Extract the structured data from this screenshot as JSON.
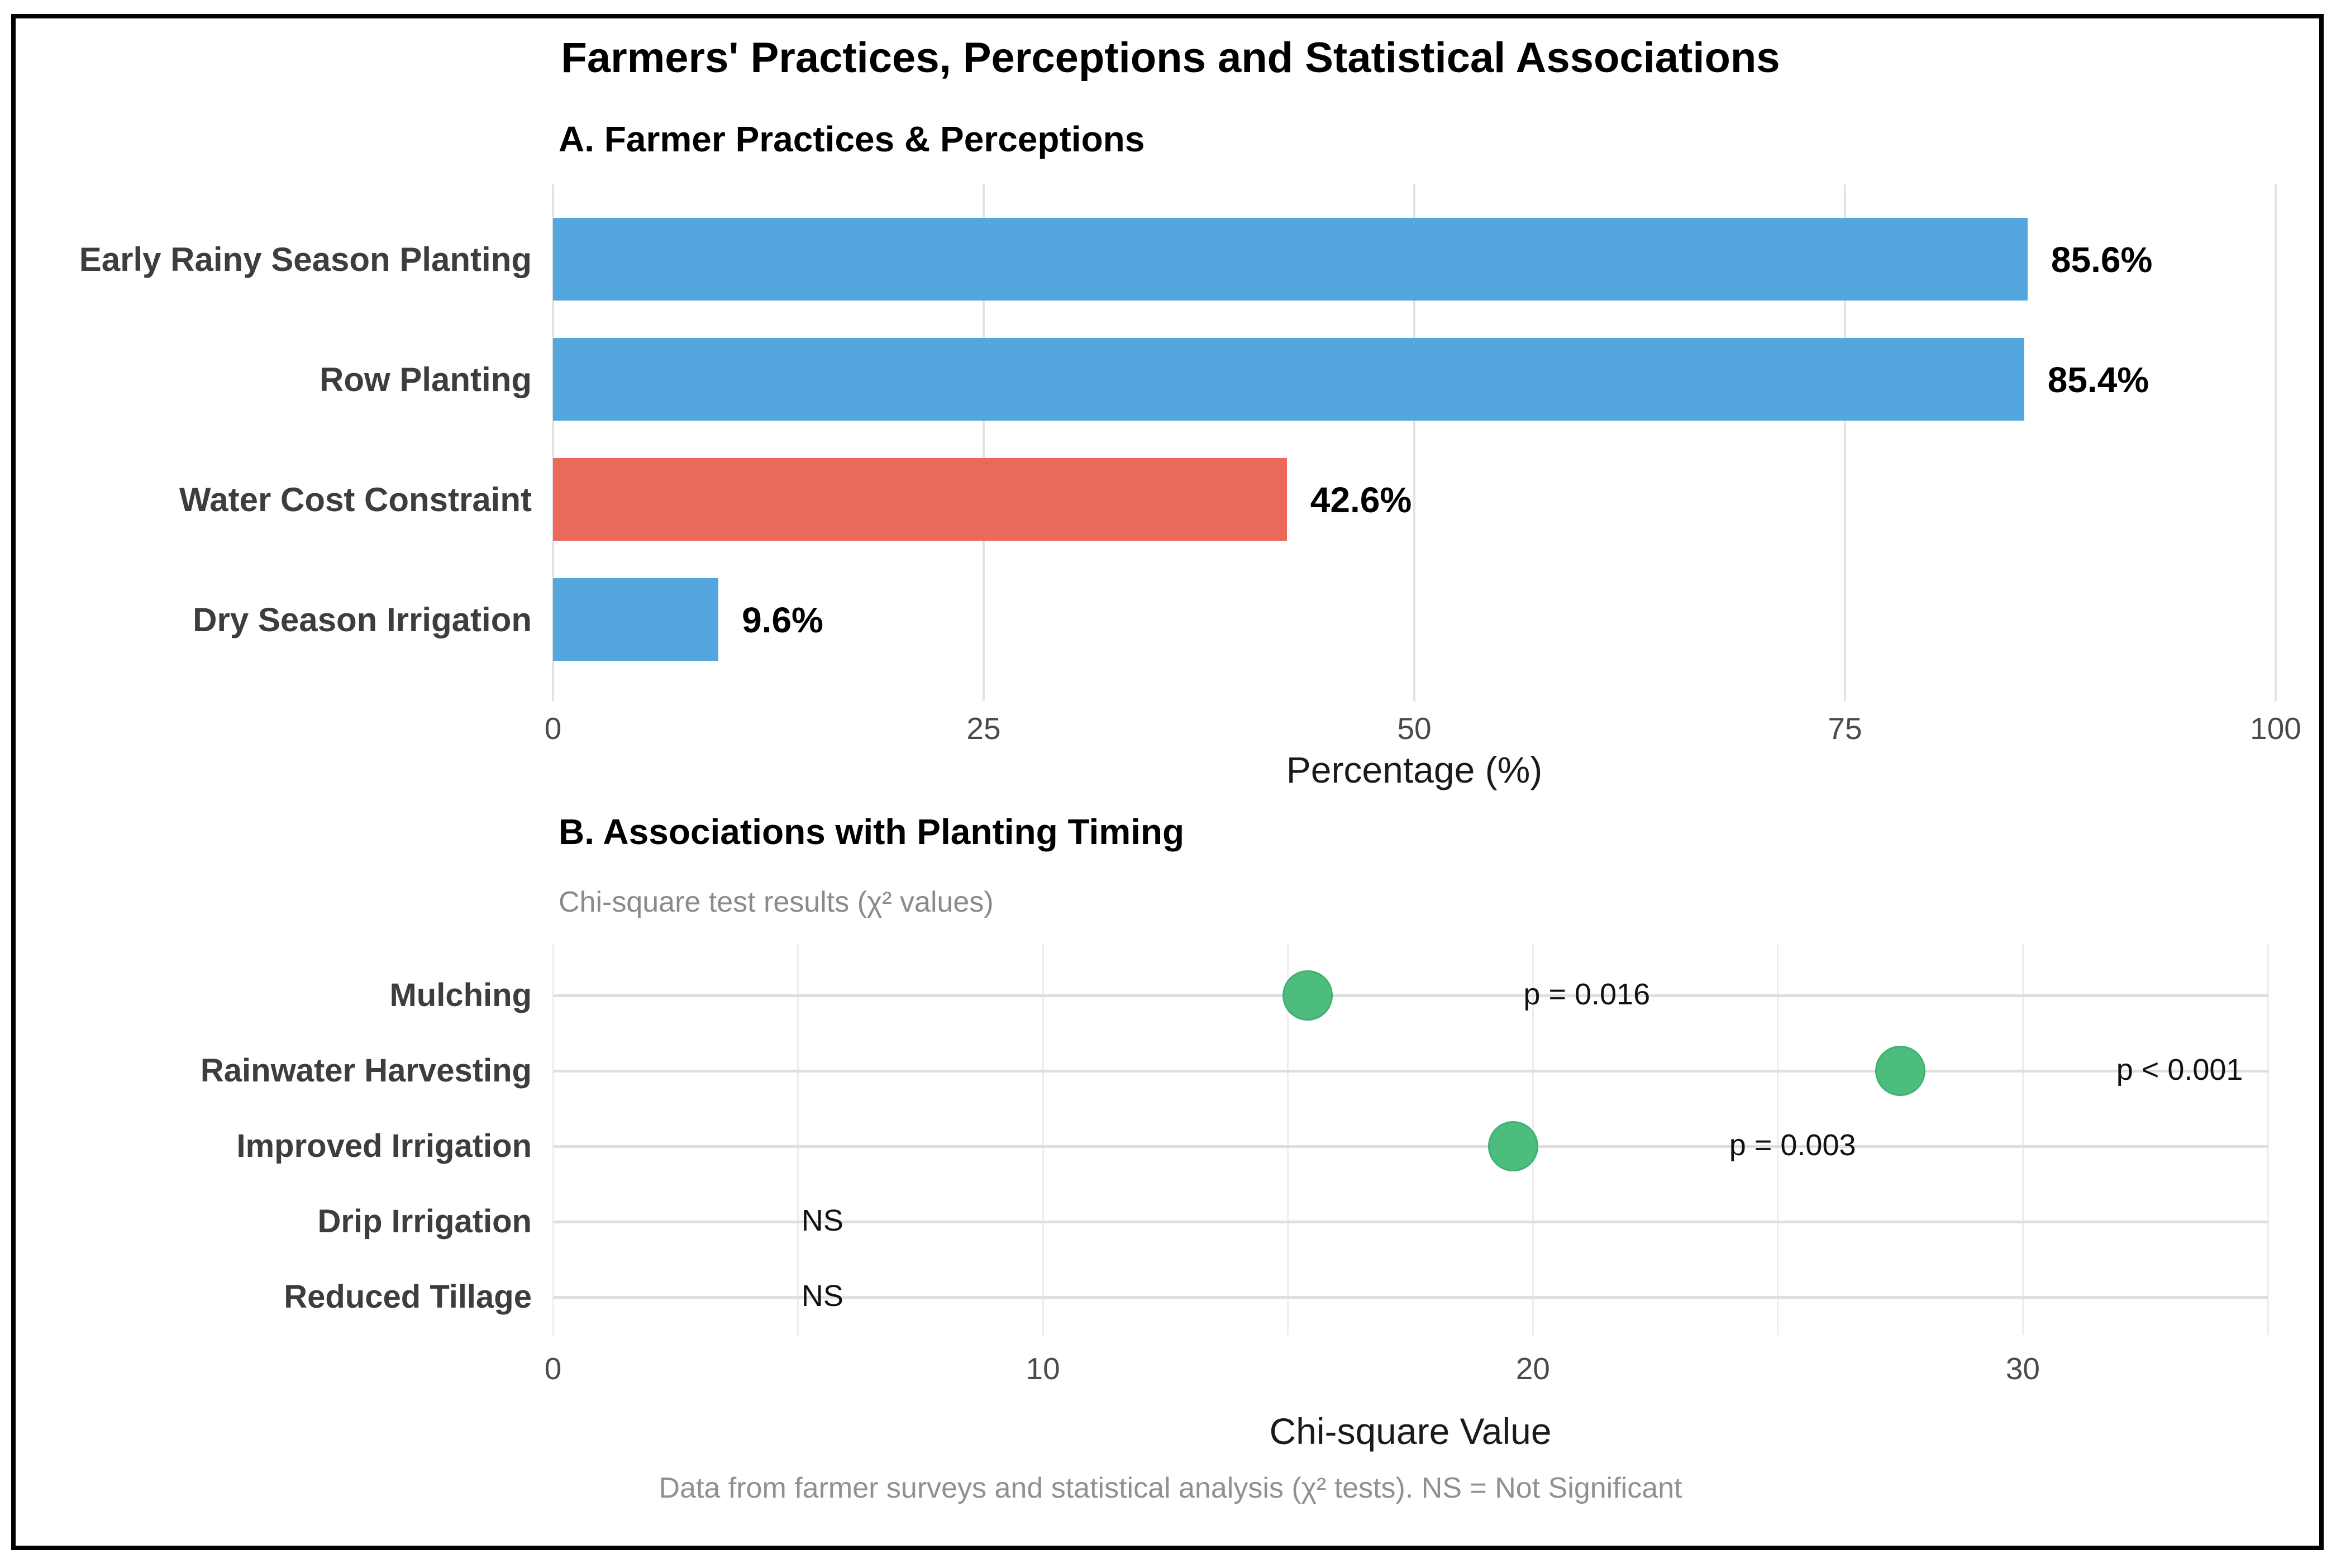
{
  "figure": {
    "title": "Farmers' Practices, Perceptions and Statistical Associations",
    "footer": "Data from farmer surveys and statistical analysis (χ² tests). NS = Not Significant"
  },
  "colors": {
    "bar_blue": "#53a6de",
    "bar_red": "#ea695b",
    "dot_green": "#4dbd7e",
    "dot_green_edge": "#3eb172",
    "grid_a": "#e3e3e3",
    "grid_b_vertical": "#ededed",
    "grid_b_row": "#dfdfdf"
  },
  "chart_data": [
    {
      "type": "bar",
      "orientation": "horizontal",
      "title": "A. Farmer Practices & Perceptions",
      "categories": [
        "Early Rainy Season Planting",
        "Row Planting",
        "Water Cost Constraint",
        "Dry Season Irrigation"
      ],
      "values": [
        85.6,
        85.4,
        42.6,
        9.6
      ],
      "value_labels": [
        "85.6%",
        "85.4%",
        "42.6%",
        "9.6%"
      ],
      "bar_colors": [
        "#53a6de",
        "#53a6de",
        "#ea695b",
        "#53a6de"
      ],
      "xlabel": "Percentage (%)",
      "xlim": [
        0,
        100
      ],
      "xticks": [
        0,
        25,
        50,
        75,
        100
      ],
      "xtick_labels": [
        "0",
        "25",
        "50",
        "75",
        "100"
      ],
      "grid": "vertical-major"
    },
    {
      "type": "scatter",
      "title": "B. Associations with Planting Timing",
      "subtitle": "Chi-square test results (χ² values)",
      "categories": [
        "Mulching",
        "Rainwater Harvesting",
        "Improved Irrigation",
        "Drip Irrigation",
        "Reduced Tillage"
      ],
      "chi_square_values": [
        15.4,
        27.5,
        19.6,
        null,
        null
      ],
      "annotations": [
        "p = 0.016",
        "p < 0.001",
        "p = 0.003",
        "NS",
        "NS"
      ],
      "annotation_x": [
        21.1,
        33.2,
        25.3,
        5.5,
        5.5
      ],
      "point_color": "#4dbd7e",
      "xlabel": "Chi-square Value",
      "xlim": [
        0,
        35
      ],
      "xticks": [
        0,
        10,
        20,
        30
      ],
      "xtick_labels": [
        "0",
        "10",
        "20",
        "30"
      ],
      "grid_step": 5
    }
  ]
}
